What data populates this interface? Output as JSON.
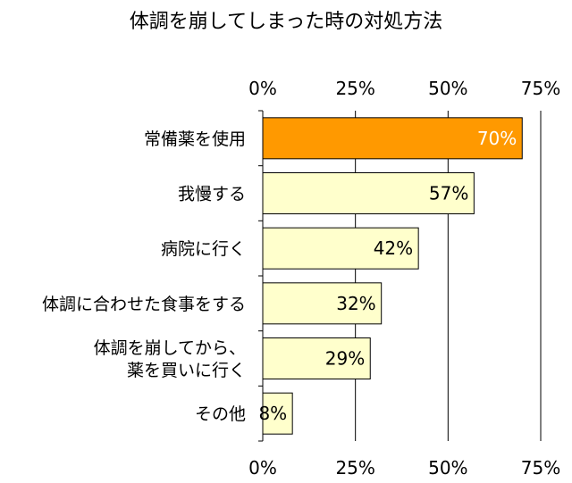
{
  "chart_data": {
    "type": "bar",
    "orientation": "horizontal",
    "title": "体調を崩してしまった時の対処方法",
    "categories": [
      [
        "常備薬を使用"
      ],
      [
        "我慢する"
      ],
      [
        "病院に行く"
      ],
      [
        "体調に合わせた食事をする"
      ],
      [
        "体調を崩してから、",
        "薬を買いに行く"
      ],
      [
        "その他"
      ]
    ],
    "values": [
      70,
      57,
      42,
      32,
      29,
      8
    ],
    "value_labels": [
      "70%",
      "57%",
      "42%",
      "32%",
      "29%",
      "8%"
    ],
    "xlim": [
      0,
      75
    ],
    "xticks": [
      0,
      25,
      50,
      75
    ],
    "xtick_labels": [
      "0%",
      "25%",
      "50%",
      "75%"
    ],
    "xtick_positions": [
      "top",
      "bottom"
    ],
    "grid": "vertical",
    "colors": {
      "highlight_fill": "#FF9900",
      "highlight_label": "#FFFFFF",
      "bar_fill": "#FFFFCC",
      "bar_label": "#000000",
      "bar_stroke": "#000000",
      "grid": "#000000"
    },
    "highlight_index": 0
  }
}
